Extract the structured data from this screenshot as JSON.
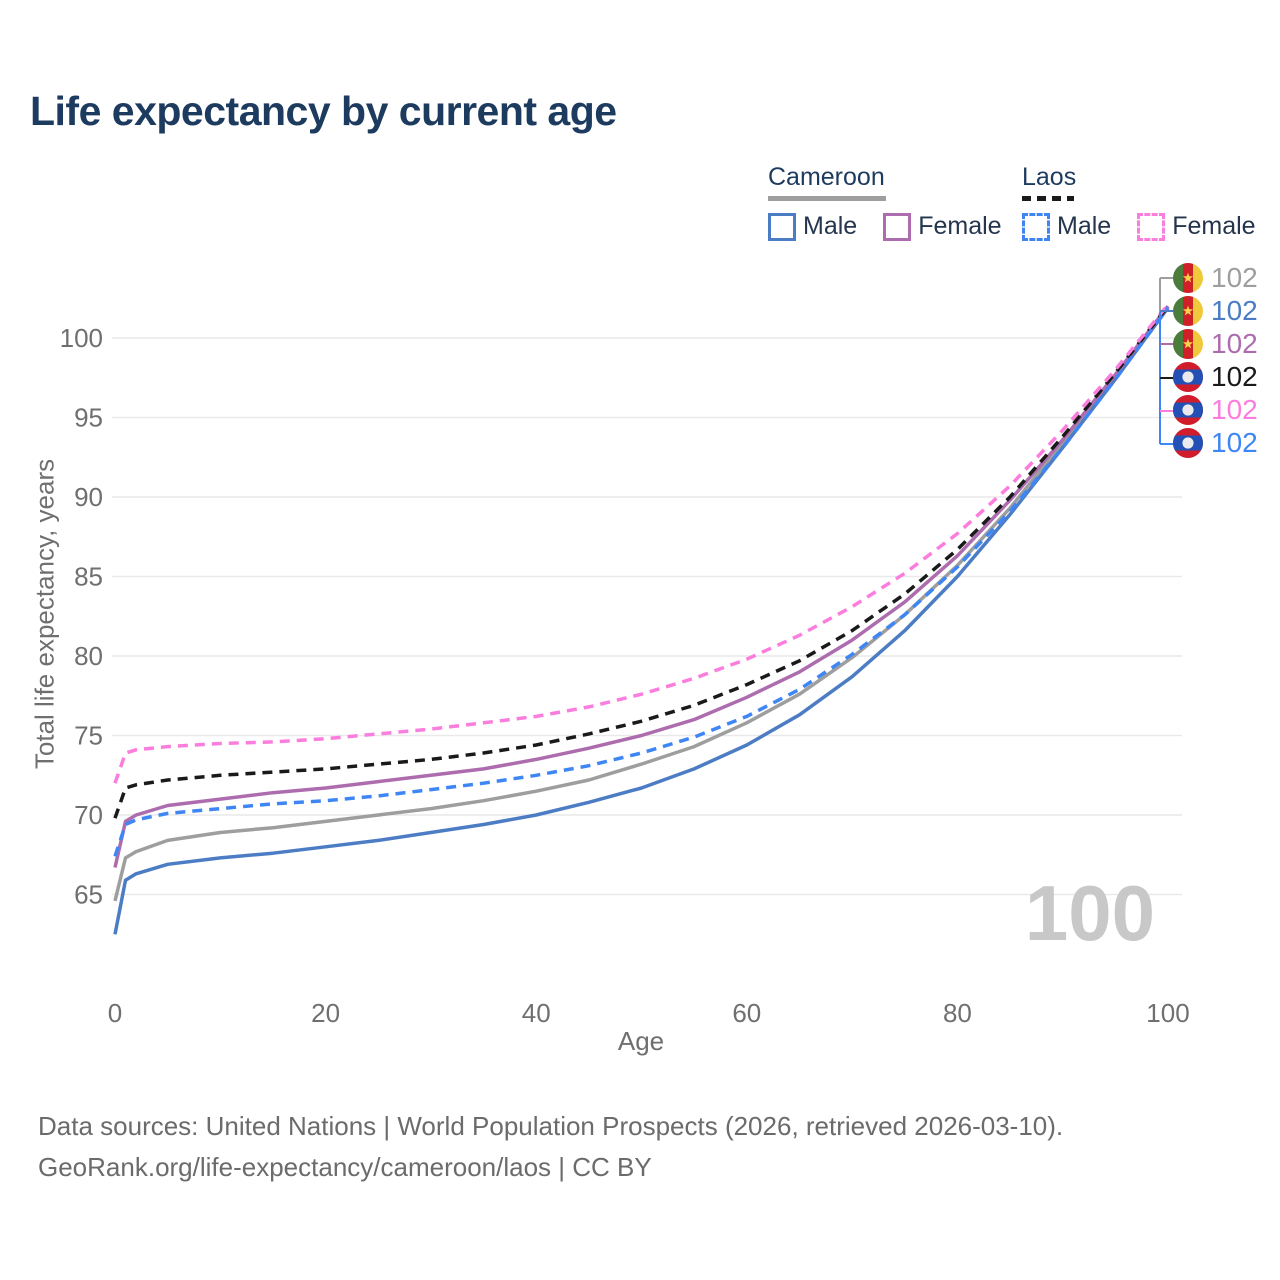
{
  "title": "Life expectancy by current age",
  "legend": {
    "groups": [
      {
        "country": "Cameroon",
        "line_style": "solid",
        "underline_color": "#9e9e9e",
        "items": [
          {
            "label": "Male",
            "color": "#4c7dc4",
            "dashed": false
          },
          {
            "label": "Female",
            "color": "#ad6cae",
            "dashed": false
          }
        ]
      },
      {
        "country": "Laos",
        "line_style": "dashed",
        "underline_color": "#1a1a1a",
        "items": [
          {
            "label": "Male",
            "color": "#3f86f5",
            "dashed": true
          },
          {
            "label": "Female",
            "color": "#fb7ddd",
            "dashed": true
          }
        ]
      }
    ]
  },
  "chart_data": {
    "type": "line",
    "xlabel": "Age",
    "ylabel": "Total life expectancy, years",
    "xticks": [
      0,
      20,
      40,
      60,
      80,
      100
    ],
    "yticks": [
      65,
      70,
      75,
      80,
      85,
      90,
      95,
      100
    ],
    "xlim": [
      0,
      100
    ],
    "ylim": [
      62,
      103
    ],
    "grid": "horizontal",
    "x": [
      0,
      1,
      2,
      5,
      10,
      15,
      20,
      25,
      30,
      35,
      40,
      45,
      50,
      55,
      60,
      65,
      70,
      75,
      80,
      85,
      90,
      95,
      100
    ],
    "series": [
      {
        "name": "Cameroon Total",
        "color": "#9e9e9e",
        "dashed": false,
        "values": [
          64.6,
          67.3,
          67.7,
          68.4,
          68.9,
          69.2,
          69.6,
          70.0,
          70.4,
          70.9,
          71.5,
          72.2,
          73.2,
          74.3,
          75.8,
          77.6,
          79.9,
          82.6,
          85.7,
          89.3,
          93.4,
          97.6,
          102.0
        ]
      },
      {
        "name": "Cameroon Male",
        "color": "#4c7dc4",
        "dashed": false,
        "values": [
          62.5,
          65.9,
          66.3,
          66.9,
          67.3,
          67.6,
          68.0,
          68.4,
          68.9,
          69.4,
          70.0,
          70.8,
          71.7,
          72.9,
          74.4,
          76.3,
          78.7,
          81.6,
          85.0,
          88.9,
          93.1,
          97.4,
          101.9
        ]
      },
      {
        "name": "Cameroon Female",
        "color": "#ad6cae",
        "dashed": false,
        "values": [
          66.7,
          69.6,
          70.0,
          70.6,
          71.0,
          71.4,
          71.7,
          72.1,
          72.5,
          72.9,
          73.5,
          74.2,
          75.0,
          76.0,
          77.4,
          79.0,
          81.0,
          83.4,
          86.3,
          89.8,
          93.6,
          97.7,
          102.0
        ]
      },
      {
        "name": "Laos Total",
        "color": "#1a1a1a",
        "dashed": true,
        "values": [
          69.8,
          71.7,
          71.9,
          72.2,
          72.5,
          72.7,
          72.9,
          73.2,
          73.5,
          73.9,
          74.4,
          75.1,
          75.9,
          76.9,
          78.2,
          79.7,
          81.6,
          83.9,
          86.7,
          90.0,
          93.8,
          97.8,
          102.0
        ]
      },
      {
        "name": "Laos Female",
        "color": "#fb7ddd",
        "dashed": true,
        "values": [
          72.0,
          73.9,
          74.1,
          74.3,
          74.5,
          74.6,
          74.8,
          75.1,
          75.4,
          75.8,
          76.2,
          76.8,
          77.6,
          78.6,
          79.8,
          81.3,
          83.1,
          85.2,
          87.7,
          90.7,
          94.2,
          98.0,
          102.1
        ]
      },
      {
        "name": "Laos Male",
        "color": "#3f86f5",
        "dashed": true,
        "values": [
          67.4,
          69.4,
          69.7,
          70.1,
          70.4,
          70.7,
          70.9,
          71.2,
          71.6,
          72.0,
          72.5,
          73.1,
          73.9,
          74.9,
          76.2,
          77.9,
          80.1,
          82.6,
          85.6,
          89.1,
          93.1,
          97.4,
          101.9
        ]
      }
    ]
  },
  "end_labels": [
    {
      "flag": "cameroon-flag-icon",
      "value": "102",
      "color": "#9e9e9e"
    },
    {
      "flag": "cameroon-flag-icon",
      "value": "102",
      "color": "#4c7dc4"
    },
    {
      "flag": "cameroon-flag-icon",
      "value": "102",
      "color": "#ad6cae"
    },
    {
      "flag": "laos-flag-icon",
      "value": "102",
      "color": "#1a1a1a"
    },
    {
      "flag": "laos-flag-icon",
      "value": "102",
      "color": "#fb7ddd"
    },
    {
      "flag": "laos-flag-icon",
      "value": "102",
      "color": "#3f86f5"
    }
  ],
  "hover_age_watermark": "100",
  "colors": {
    "title": "#1d3a5f",
    "axis_text": "#6f6f6f",
    "gridline": "#e9e9e9",
    "watermark": "#c8c8c8",
    "footer_text": "#6b6b6b"
  },
  "footer": {
    "line1": "Data sources: United Nations | World Population Prospects (2026, retrieved 2026-03-10).",
    "line2": "GeoRank.org/life-expectancy/cameroon/laos | CC BY"
  }
}
